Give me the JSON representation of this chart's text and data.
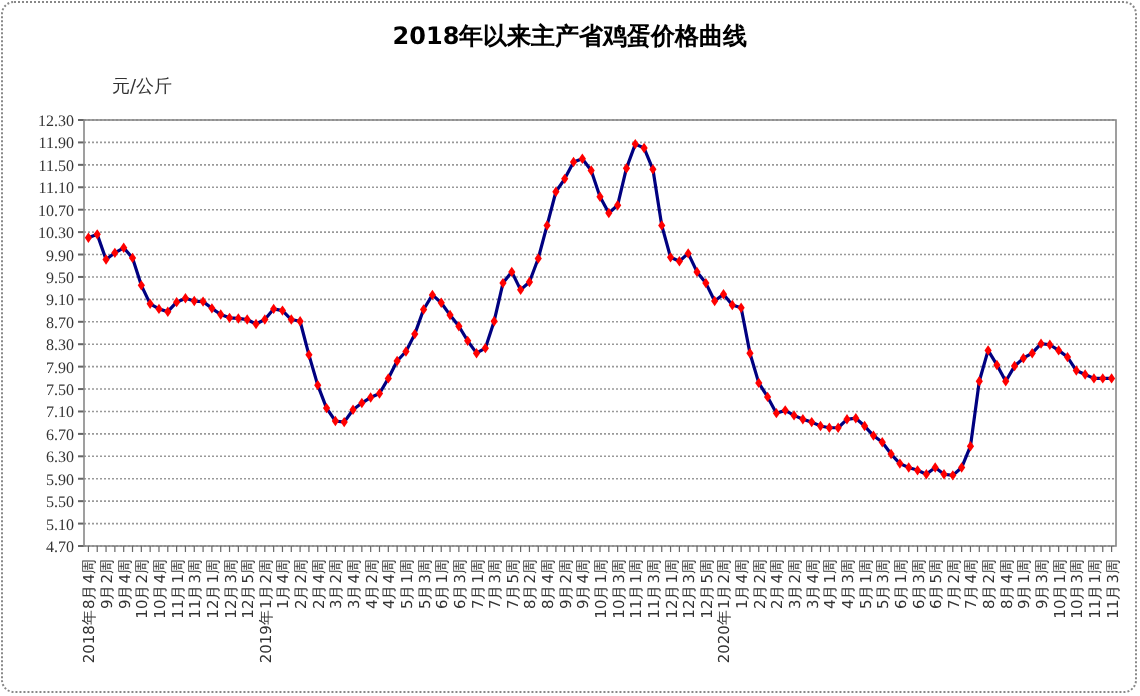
{
  "chart_data": {
    "type": "line",
    "title": "2018年以来主产省鸡蛋价格曲线",
    "ylabel": "元/公斤",
    "categories": [
      "2018年8月4周",
      null,
      "9月2周",
      null,
      "9月4周",
      null,
      "10月2周",
      null,
      "10月4周",
      null,
      "11月1周",
      null,
      "11月3周",
      null,
      "12月1周",
      null,
      "12月3周",
      null,
      "12月5周",
      null,
      "2019年1月2周",
      null,
      "1月4周",
      null,
      "2月2周",
      null,
      "2月4周",
      null,
      "3月2周",
      null,
      "3月4周",
      null,
      "4月2周",
      null,
      "4月4周",
      null,
      "5月1周",
      null,
      "5月3周",
      null,
      "6月1周",
      null,
      "6月3周",
      null,
      "7月1周",
      null,
      "7月3周",
      null,
      "7月5周",
      null,
      "8月2周",
      null,
      "8月4周",
      null,
      "9月2周",
      null,
      "9月4周",
      null,
      "10月1周",
      null,
      "10月3周",
      null,
      "11月1周",
      null,
      "11月3周",
      null,
      "12月1周",
      null,
      "12月3周",
      null,
      "12月5周",
      null,
      "2020年1月2周",
      null,
      "1月4周",
      null,
      "2月2周",
      null,
      "2月4周",
      null,
      "3月2周",
      null,
      "3月4周",
      null,
      "4月1周",
      null,
      "4月3周",
      null,
      "5月1周",
      null,
      "5月3周",
      null,
      "6月1周",
      null,
      "6月3周",
      null,
      "6月5周",
      null,
      "7月2周",
      null,
      "7月4周",
      null,
      "8月2周",
      null,
      "8月4周",
      null,
      "9月1周",
      null,
      "9月3周",
      null,
      "10月1周",
      null,
      "10月3周",
      null,
      "11月1周",
      null,
      "11月3周"
    ],
    "series": [
      {
        "color": "#ff0000",
        "values": [
          10.2,
          10.26,
          9.81,
          9.93,
          10.02,
          9.84,
          9.35,
          9.02,
          8.93,
          8.88,
          9.05,
          9.12,
          9.07,
          9.06,
          8.94,
          8.83,
          8.77,
          8.76,
          8.74,
          8.66,
          8.74,
          8.93,
          8.9,
          8.74,
          8.71,
          8.11,
          7.57,
          7.16,
          6.93,
          6.91,
          7.13,
          7.25,
          7.35,
          7.42,
          7.69,
          8.0,
          8.17,
          8.48,
          8.92,
          9.18,
          9.04,
          8.82,
          8.62,
          8.36,
          8.14,
          8.23,
          8.71,
          9.39,
          9.59,
          9.27,
          9.41,
          9.83,
          10.42,
          11.02,
          11.25,
          11.55,
          11.61,
          11.4,
          10.93,
          10.64,
          10.78,
          11.44,
          11.87,
          11.8,
          11.42,
          10.42,
          9.85,
          9.78,
          9.92,
          9.59,
          9.39,
          9.07,
          9.19,
          9.0,
          8.95,
          8.14,
          7.61,
          7.36,
          7.07,
          7.12,
          7.03,
          6.96,
          6.91,
          6.84,
          6.81,
          6.81,
          6.96,
          6.98,
          6.84,
          6.67,
          6.55,
          6.34,
          6.17,
          6.1,
          6.05,
          5.98,
          6.1,
          5.98,
          5.96,
          6.1,
          6.48,
          7.64,
          8.19,
          7.93,
          7.64,
          7.91,
          8.05,
          8.14,
          8.31,
          8.29,
          8.19,
          8.07,
          7.83,
          7.76,
          7.69,
          7.69,
          7.69
        ]
      }
    ],
    "ylim": [
      4.7,
      12.3
    ],
    "yticks": [
      {
        "value": 4.7,
        "label": "4.70"
      },
      {
        "value": 5.1,
        "label": "5.10"
      },
      {
        "value": 5.5,
        "label": "5.50"
      },
      {
        "value": 5.9,
        "label": "5.90"
      },
      {
        "value": 6.3,
        "label": "6.30"
      },
      {
        "value": 6.7,
        "label": "6.70"
      },
      {
        "value": 7.1,
        "label": "7.10"
      },
      {
        "value": 7.5,
        "label": "7.50"
      },
      {
        "value": 7.9,
        "label": "7.90"
      },
      {
        "value": 8.3,
        "label": "8.30"
      },
      {
        "value": 8.7,
        "label": "8.70"
      },
      {
        "value": 9.1,
        "label": "9.10"
      },
      {
        "value": 9.5,
        "label": "9.50"
      },
      {
        "value": 9.9,
        "label": "9.90"
      },
      {
        "value": 10.3,
        "label": "10.30"
      },
      {
        "value": 10.7,
        "label": "10.70"
      },
      {
        "value": 11.1,
        "label": "11.10"
      },
      {
        "value": 11.5,
        "label": "11.50"
      },
      {
        "value": 11.9,
        "label": "11.90"
      },
      {
        "value": 12.3,
        "label": "12.30"
      }
    ],
    "grid": "y",
    "marker": "diamond",
    "line_style": "solid"
  }
}
